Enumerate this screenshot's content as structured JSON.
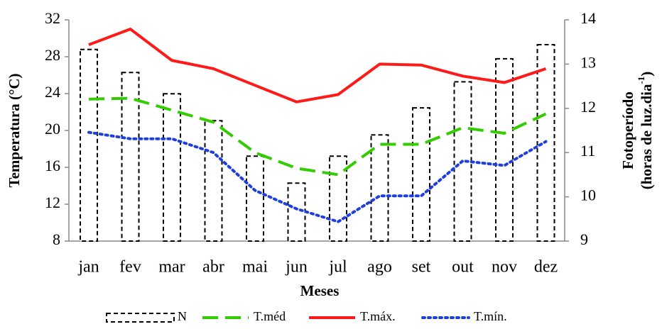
{
  "chart_data": {
    "type": "combo",
    "categories": [
      "jan",
      "fev",
      "mar",
      "abr",
      "mai",
      "jun",
      "jul",
      "ago",
      "set",
      "out",
      "nov",
      "dez"
    ],
    "series": [
      {
        "name": "N",
        "type": "bar",
        "axis": "y2",
        "color": "#000000",
        "style": "dashed",
        "values": [
          13.33,
          12.81,
          12.33,
          11.72,
          10.92,
          10.31,
          10.92,
          11.4,
          12.01,
          12.6,
          13.12,
          13.44
        ]
      },
      {
        "name": "T.méd",
        "type": "line",
        "color": "#33cc00",
        "style": "dashed",
        "values": [
          23.4,
          23.5,
          22.2,
          20.9,
          17.6,
          15.9,
          15.2,
          18.5,
          18.5,
          20.3,
          19.7,
          21.8
        ]
      },
      {
        "name": "T.máx.",
        "type": "line",
        "color": "#ff1a1a",
        "style": "solid",
        "values": [
          29.3,
          31.0,
          27.6,
          26.7,
          24.9,
          23.1,
          23.9,
          27.2,
          27.1,
          25.9,
          25.2,
          26.7
        ]
      },
      {
        "name": "T.mín.",
        "type": "line",
        "color": "#1f3fdc",
        "style": "dotted",
        "values": [
          19.8,
          19.1,
          19.1,
          17.6,
          13.5,
          11.5,
          10.1,
          12.9,
          12.9,
          16.7,
          16.2,
          18.8
        ]
      }
    ],
    "xlabel": "Meses",
    "ylabel": "Temperatura (°C)",
    "y2label": [
      "Fotoperíodo",
      "(horas de luz.dia",
      "-1",
      ")"
    ],
    "ylim": [
      8,
      32
    ],
    "yticks": [
      8,
      12,
      16,
      20,
      24,
      28,
      32
    ],
    "y2lim": [
      9,
      14
    ],
    "y2ticks": [
      9,
      10,
      11,
      12,
      13,
      14
    ],
    "legend": "bottom"
  }
}
